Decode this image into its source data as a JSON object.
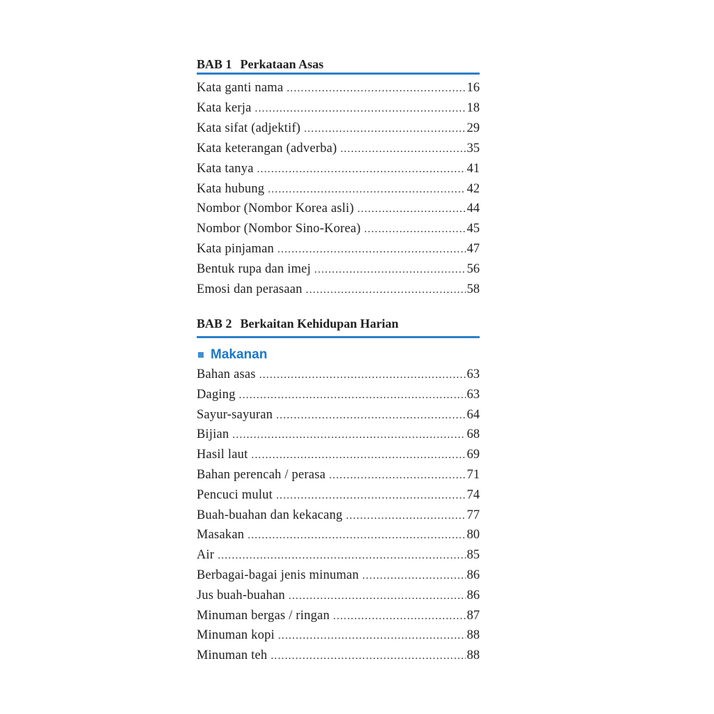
{
  "chapters": [
    {
      "number": "BAB 1",
      "title": "Perkataan Asas",
      "entries": [
        {
          "label": "Kata ganti nama",
          "page": "16"
        },
        {
          "label": "Kata kerja",
          "page": "18"
        },
        {
          "label": "Kata sifat (adjektif)",
          "page": "29"
        },
        {
          "label": "Kata keterangan (adverba)",
          "page": "35"
        },
        {
          "label": "Kata tanya",
          "page": "41"
        },
        {
          "label": "Kata hubung",
          "page": "42"
        },
        {
          "label": "Nombor (Nombor Korea asli)",
          "page": "44"
        },
        {
          "label": "Nombor (Nombor Sino-Korea)",
          "page": "45"
        },
        {
          "label": "Kata pinjaman",
          "page": "47"
        },
        {
          "label": "Bentuk rupa dan imej",
          "page": "56"
        },
        {
          "label": "Emosi dan perasaan",
          "page": "58"
        }
      ]
    },
    {
      "number": "BAB 2",
      "title": "Berkaitan Kehidupan Harian",
      "section": "Makanan",
      "entries": [
        {
          "label": "Bahan asas",
          "page": "63"
        },
        {
          "label": "Daging",
          "page": "63"
        },
        {
          "label": "Sayur-sayuran",
          "page": "64"
        },
        {
          "label": "Bijian",
          "page": "68"
        },
        {
          "label": "Hasil laut",
          "page": "69"
        },
        {
          "label": "Bahan perencah / perasa",
          "page": "71"
        },
        {
          "label": "Pencuci mulut",
          "page": "74"
        },
        {
          "label": "Buah-buahan dan kekacang",
          "page": "77"
        },
        {
          "label": "Masakan",
          "page": "80"
        },
        {
          "label": "Air",
          "page": "85"
        },
        {
          "label": "Berbagai-bagai jenis minuman",
          "page": "86"
        },
        {
          "label": "Jus buah-buahan",
          "page": "86"
        },
        {
          "label": "Minuman bergas / ringan",
          "page": "87"
        },
        {
          "label": "Minuman kopi",
          "page": "88"
        },
        {
          "label": "Minuman teh",
          "page": "88"
        }
      ]
    }
  ],
  "colors": {
    "accent": "#2a7fc8",
    "section": "#1a78c8",
    "text": "#222222"
  }
}
